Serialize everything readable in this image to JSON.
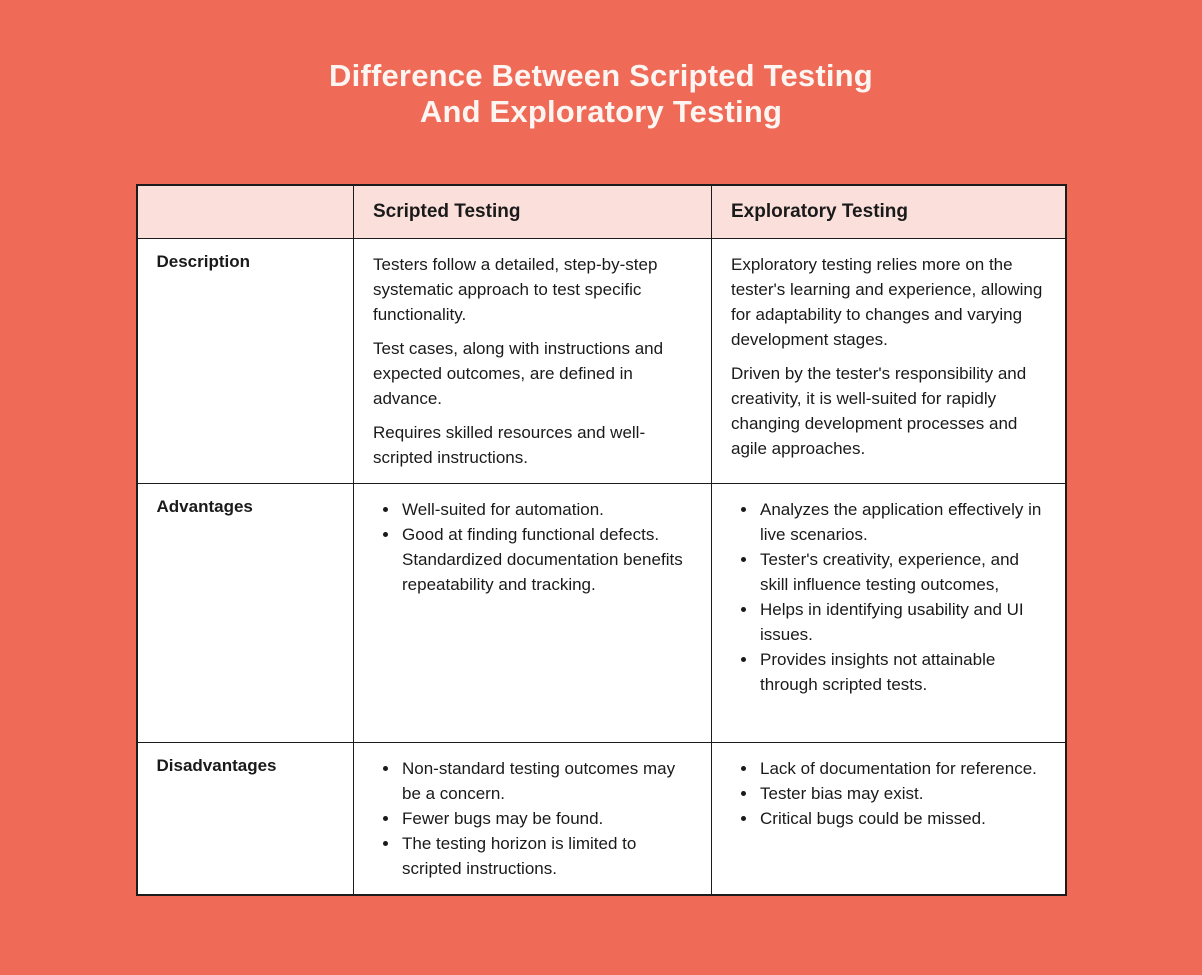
{
  "title": {
    "line1": "Difference Between Scripted Testing",
    "line2": "And Exploratory Testing"
  },
  "colors": {
    "background": "#EF6A57",
    "header_band": "#FBDFDB",
    "cell_background": "#FFFFFF",
    "border": "#1C1C1C",
    "title_text": "#FDF5F1",
    "body_text": "#1D1D1D"
  },
  "table": {
    "header": {
      "corner": "",
      "scripted": "Scripted Testing",
      "exploratory": "Exploratory Testing"
    },
    "rows": [
      {
        "label": "Description",
        "scripted": {
          "paragraphs": [
            "Testers follow a detailed, step-by-step systematic approach to test specific functionality.",
            "Test cases, along with instructions and expected outcomes, are defined in advance.",
            "Requires skilled resources and well-scripted instructions."
          ]
        },
        "exploratory": {
          "paragraphs": [
            "Exploratory testing relies more on the tester's learning and experience, allowing for adaptability to changes and varying development stages.",
            "Driven by the tester's responsibility and creativity, it is well-suited for rapidly changing development processes and agile approaches."
          ]
        }
      },
      {
        "label": "Advantages",
        "scripted": {
          "bullets": [
            "Well-suited for automation.",
            "Good at finding functional defects. Standardized documentation benefits repeatability and tracking."
          ]
        },
        "exploratory": {
          "bullets": [
            "Analyzes the application effectively in live scenarios.",
            "Tester's creativity, experience, and skill influence testing outcomes,",
            "Helps in identifying usability and UI issues.",
            "Provides insights not attainable through scripted tests."
          ]
        }
      },
      {
        "label": "Disadvantages",
        "scripted": {
          "bullets": [
            "Non-standard testing outcomes may be a concern.",
            "Fewer bugs may be found.",
            "The testing horizon is limited to scripted instructions."
          ]
        },
        "exploratory": {
          "bullets": [
            "Lack of documentation for reference.",
            "Tester bias may exist.",
            "Critical bugs could be missed."
          ]
        }
      }
    ]
  }
}
